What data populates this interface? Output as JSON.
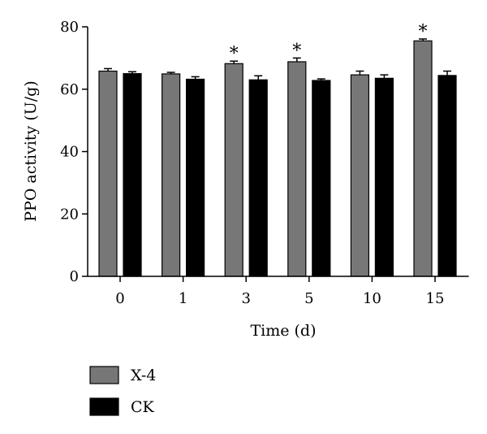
{
  "chart_data": {
    "type": "bar",
    "xlabel": "Time (d)",
    "ylabel": "PPO activity (U/g)",
    "categories": [
      "0",
      "1",
      "3",
      "5",
      "10",
      "15"
    ],
    "ylim": [
      0,
      80
    ],
    "yticks": [
      0,
      20,
      40,
      60,
      80
    ],
    "grid": false,
    "legend_position": "bottom-left",
    "series": [
      {
        "name": "X-4",
        "color": "#777777",
        "values": [
          65.8,
          64.9,
          68.2,
          68.8,
          64.6,
          75.5
        ],
        "errors": [
          0.8,
          0.5,
          0.8,
          1.2,
          1.2,
          0.6
        ]
      },
      {
        "name": "CK",
        "color": "#000000",
        "values": [
          65.0,
          63.2,
          63.0,
          62.8,
          63.5,
          64.4
        ],
        "errors": [
          0.6,
          0.8,
          1.3,
          0.5,
          1.1,
          1.4
        ]
      }
    ],
    "annotations": [
      {
        "category": "3",
        "series": "X-4",
        "text": "*"
      },
      {
        "category": "5",
        "series": "X-4",
        "text": "*"
      },
      {
        "category": "15",
        "series": "X-4",
        "text": "*"
      }
    ]
  }
}
